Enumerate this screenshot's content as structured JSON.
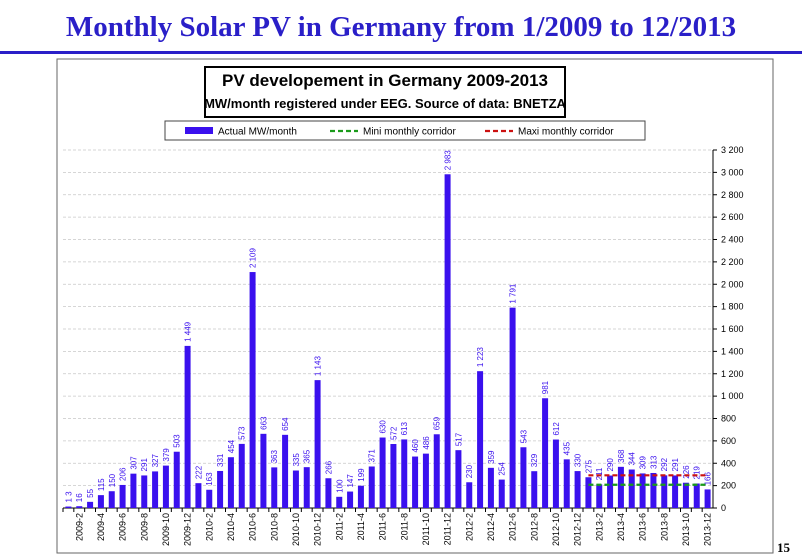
{
  "slide": {
    "title": "Monthly Solar PV in Germany from 1/2009 to 12/2013",
    "page_number": "15"
  },
  "chart_data": {
    "type": "bar",
    "title": "PV developement in Germany 2009-2013",
    "subtitle": "MW/month registered under EEG. Source of data: BNETZA",
    "categories": [
      null,
      "2009-2",
      null,
      "2009-4",
      null,
      "2009-6",
      null,
      "2009-8",
      null,
      "2009-10",
      null,
      "2009-12",
      null,
      "2010-2",
      null,
      "2010-4",
      null,
      "2010-6",
      null,
      "2010-8",
      null,
      "2010-10",
      null,
      "2010-12",
      null,
      "2011-2",
      null,
      "2011-4",
      null,
      "2011-6",
      null,
      "2011-8",
      null,
      "2011-10",
      null,
      "2011-12",
      null,
      "2012-2",
      null,
      "2012-4",
      null,
      "2012-6",
      null,
      "2012-8",
      null,
      "2012-10",
      null,
      "2012-12",
      null,
      "2013-2",
      null,
      "2013-4",
      null,
      "2013-6",
      null,
      "2013-8",
      null,
      "2013-10",
      null,
      "2013-12"
    ],
    "series": [
      {
        "name": "Actual MW/month",
        "color": "#3a10ee",
        "kind": "bar",
        "values": [
          13,
          16,
          55,
          115,
          150,
          206,
          307,
          291,
          327,
          379,
          503,
          1449,
          222,
          163,
          331,
          454,
          573,
          2109,
          663,
          363,
          654,
          335,
          365,
          1143,
          266,
          100,
          147,
          199,
          371,
          630,
          572,
          613,
          460,
          486,
          659,
          2983,
          517,
          230,
          1223,
          359,
          254,
          1791,
          543,
          329,
          981,
          612,
          435,
          330,
          275,
          211,
          290,
          368,
          344,
          309,
          313,
          292,
          291,
          226,
          219,
          166
        ],
        "value_labels": [
          "1 3",
          "16",
          "55",
          "115",
          "150",
          "206",
          "307",
          "291",
          "327",
          "379",
          "503",
          "1 449",
          "222",
          "163",
          "331",
          "454",
          "573",
          "2 109",
          "663",
          "363",
          "654",
          "335",
          "365",
          "1 143",
          "266",
          "100",
          "147",
          "199",
          "371",
          "630",
          "572",
          "613",
          "460",
          "486",
          "659",
          "2 983",
          "517",
          "230",
          "1 223",
          "359",
          "254",
          "1 791",
          "543",
          "329",
          "981",
          "612",
          "435",
          "330",
          "275",
          "211",
          "290",
          "368",
          "344",
          "309",
          "313",
          "292",
          "291",
          "226",
          "219",
          "166"
        ]
      },
      {
        "name": "Mini monthly corridor",
        "color": "#1a9a1a",
        "kind": "line",
        "values": [
          null,
          null,
          null,
          null,
          null,
          null,
          null,
          null,
          null,
          null,
          null,
          null,
          null,
          null,
          null,
          null,
          null,
          null,
          null,
          null,
          null,
          null,
          null,
          null,
          null,
          null,
          null,
          null,
          null,
          null,
          null,
          null,
          null,
          null,
          null,
          null,
          null,
          null,
          null,
          null,
          null,
          null,
          null,
          null,
          null,
          null,
          null,
          null,
          208,
          208,
          208,
          208,
          208,
          208,
          208,
          208,
          208,
          208,
          208,
          208
        ]
      },
      {
        "name": "Maxi monthly corridor",
        "color": "#cc1111",
        "kind": "line",
        "values": [
          null,
          null,
          null,
          null,
          null,
          null,
          null,
          null,
          null,
          null,
          null,
          null,
          null,
          null,
          null,
          null,
          null,
          null,
          null,
          null,
          null,
          null,
          null,
          null,
          null,
          null,
          null,
          null,
          null,
          null,
          null,
          null,
          null,
          null,
          null,
          null,
          null,
          null,
          null,
          null,
          null,
          null,
          null,
          null,
          null,
          null,
          null,
          null,
          292,
          292,
          292,
          292,
          292,
          292,
          292,
          292,
          292,
          292,
          292,
          292
        ]
      }
    ],
    "ylim": [
      0,
      3200
    ],
    "yticks": [
      0,
      200,
      400,
      600,
      800,
      {
        "value": 1000,
        "label": "1 000"
      },
      {
        "value": 1200,
        "label": "1 200"
      },
      {
        "value": 1400,
        "label": "1 400"
      },
      {
        "value": 1600,
        "label": "1 600"
      },
      {
        "value": 1800,
        "label": "1 800"
      },
      {
        "value": 2000,
        "label": "2 000"
      },
      {
        "value": 2200,
        "label": "2 200"
      },
      {
        "value": 2400,
        "label": "2 400"
      },
      {
        "value": 2600,
        "label": "2 600"
      },
      {
        "value": 2800,
        "label": "2 800"
      },
      {
        "value": 3000,
        "label": "3 000"
      },
      {
        "value": 3200,
        "label": "3 200"
      }
    ],
    "grid": true,
    "legend": "top"
  }
}
